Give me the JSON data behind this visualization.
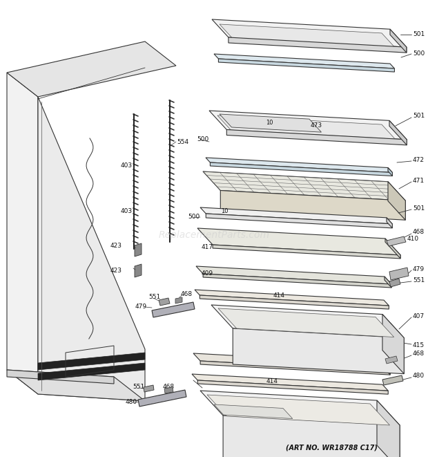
{
  "art_no": "(ART NO. WR18788 C17)",
  "background_color": "#ffffff",
  "fig_width": 6.2,
  "fig_height": 6.61,
  "dpi": 100,
  "watermark": "ReplacementParts.com",
  "line_color": "#333333",
  "lw": 0.8
}
